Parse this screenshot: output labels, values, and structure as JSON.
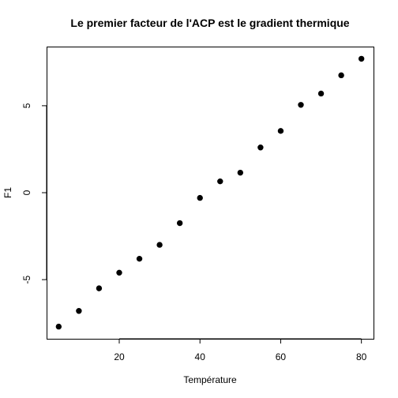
{
  "chart_data": {
    "type": "scatter",
    "title": "Le premier facteur de l'ACP est le gradient thermique",
    "xlabel": "Température",
    "ylabel": "F1",
    "xlim": [
      2.0,
      83.0
    ],
    "ylim": [
      -8.4,
      8.4
    ],
    "x_ticks": [
      20,
      40,
      60,
      80
    ],
    "y_ticks": [
      -5,
      0,
      5
    ],
    "grid": false,
    "point_color": "#000000",
    "series": [
      {
        "x": [
          5,
          10,
          15,
          20,
          25,
          30,
          35,
          40,
          45,
          50,
          55,
          60,
          65,
          70,
          75,
          80
        ],
        "y": [
          -7.7,
          -6.8,
          -5.5,
          -4.6,
          -3.8,
          -3.0,
          -1.75,
          -0.3,
          0.65,
          1.15,
          2.6,
          3.55,
          5.05,
          5.7,
          6.75,
          7.7
        ]
      }
    ]
  }
}
